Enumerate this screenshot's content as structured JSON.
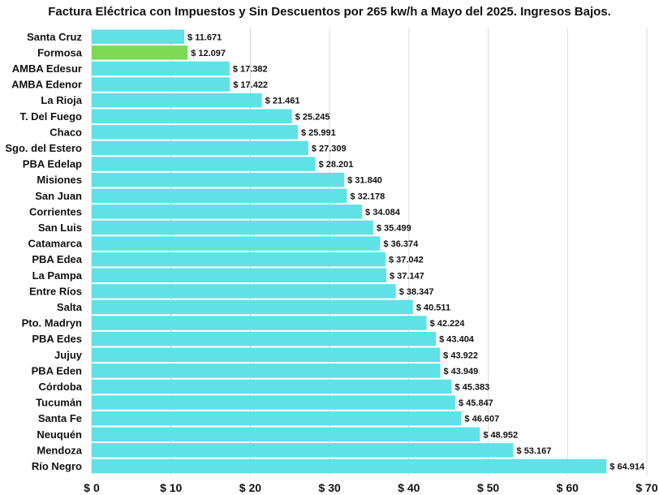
{
  "chart_data": {
    "type": "bar",
    "orientation": "horizontal",
    "title": "Factura Eléctrica con Impuestos y Sin Descuentos por 265 kw/h a Mayo del 2025. Ingresos Bajos.",
    "categories": [
      "Santa Cruz",
      "Formosa",
      "AMBA Edesur",
      "AMBA Edenor",
      "La Rioja",
      "T. Del Fuego",
      "Chaco",
      "Sgo. del Estero",
      "PBA Edelap",
      "Misiones",
      "San Juan",
      "Corrientes",
      "San Luis",
      "Catamarca",
      "PBA Edea",
      "La Pampa",
      "Entre Ríos",
      "Salta",
      "Pto. Madryn",
      "PBA Edes",
      "Jujuy",
      "PBA Eden",
      "Córdoba",
      "Tucumán",
      "Santa Fe",
      "Neuquén",
      "Mendoza",
      "Río Negro"
    ],
    "values": [
      11671,
      12097,
      17382,
      17422,
      21461,
      25245,
      25991,
      27309,
      28201,
      31840,
      32178,
      34084,
      35499,
      36374,
      37042,
      37147,
      38347,
      40511,
      42224,
      43404,
      43922,
      43949,
      45383,
      45847,
      46607,
      48952,
      53167,
      64914
    ],
    "value_labels": [
      "$ 11.671",
      "$ 12.097",
      "$ 17.382",
      "$ 17.422",
      "$ 21.461",
      "$ 25.245",
      "$ 25.991",
      "$ 27.309",
      "$ 28.201",
      "$ 31.840",
      "$ 32.178",
      "$ 34.084",
      "$ 35.499",
      "$ 36.374",
      "$ 37.042",
      "$ 37.147",
      "$ 38.347",
      "$ 40.511",
      "$ 42.224",
      "$ 43.404",
      "$ 43.922",
      "$ 43.949",
      "$ 45.383",
      "$ 45.847",
      "$ 46.607",
      "$ 48.952",
      "$ 53.167",
      "$ 64.914"
    ],
    "highlight_category": "Formosa",
    "xlim": [
      0,
      70000
    ],
    "x_ticks": [
      0,
      10000,
      20000,
      30000,
      40000,
      50000,
      60000,
      70000
    ],
    "x_tick_labels": [
      "$ 0",
      "$ 10",
      "$ 20",
      "$ 30",
      "$ 40",
      "$ 50",
      "$ 60",
      "$ 70"
    ],
    "xlabel": "",
    "ylabel": "",
    "grid": true,
    "legend": "none",
    "colors": {
      "bar": "#5fe1e6",
      "highlight": "#7ed957"
    }
  }
}
